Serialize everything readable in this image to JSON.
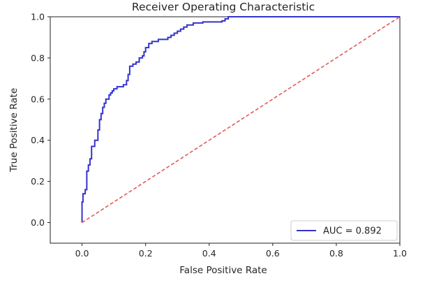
{
  "chart_data": {
    "type": "line",
    "title": "Receiver Operating Characteristic",
    "xlabel": "False Positive Rate",
    "ylabel": "True Positive Rate",
    "xlim": [
      -0.1,
      1.0
    ],
    "ylim": [
      -0.1,
      1.0
    ],
    "xticks": [
      "0.0",
      "0.2",
      "0.4",
      "0.6",
      "0.8",
      "1.0"
    ],
    "yticks": [
      "0.0",
      "0.2",
      "0.4",
      "0.6",
      "0.8",
      "1.0"
    ],
    "grid": false,
    "legend_position": "lower right",
    "series": [
      {
        "name": "AUC = 0.892",
        "color": "#3333cc",
        "style": "solid",
        "x": [
          0.0,
          0.0,
          0.003,
          0.003,
          0.01,
          0.01,
          0.015,
          0.015,
          0.02,
          0.02,
          0.025,
          0.025,
          0.03,
          0.03,
          0.04,
          0.04,
          0.05,
          0.05,
          0.055,
          0.055,
          0.06,
          0.06,
          0.065,
          0.065,
          0.07,
          0.07,
          0.075,
          0.075,
          0.085,
          0.085,
          0.09,
          0.09,
          0.095,
          0.095,
          0.1,
          0.1,
          0.11,
          0.11,
          0.13,
          0.13,
          0.14,
          0.14,
          0.145,
          0.145,
          0.15,
          0.15,
          0.16,
          0.16,
          0.17,
          0.17,
          0.18,
          0.18,
          0.19,
          0.19,
          0.195,
          0.195,
          0.2,
          0.2,
          0.21,
          0.21,
          0.22,
          0.22,
          0.24,
          0.24,
          0.27,
          0.27,
          0.28,
          0.28,
          0.29,
          0.29,
          0.3,
          0.3,
          0.31,
          0.31,
          0.32,
          0.32,
          0.33,
          0.33,
          0.35,
          0.35,
          0.38,
          0.38,
          0.44,
          0.44,
          0.45,
          0.45,
          0.46,
          0.46,
          0.56,
          0.56,
          1.0
        ],
        "y": [
          0.0,
          0.1,
          0.1,
          0.14,
          0.14,
          0.16,
          0.16,
          0.25,
          0.25,
          0.28,
          0.28,
          0.31,
          0.31,
          0.37,
          0.37,
          0.4,
          0.4,
          0.45,
          0.45,
          0.5,
          0.5,
          0.53,
          0.53,
          0.56,
          0.56,
          0.58,
          0.58,
          0.6,
          0.6,
          0.62,
          0.62,
          0.63,
          0.63,
          0.64,
          0.64,
          0.65,
          0.65,
          0.66,
          0.66,
          0.67,
          0.67,
          0.69,
          0.69,
          0.72,
          0.72,
          0.76,
          0.76,
          0.77,
          0.77,
          0.78,
          0.78,
          0.8,
          0.8,
          0.81,
          0.81,
          0.83,
          0.83,
          0.85,
          0.85,
          0.87,
          0.87,
          0.88,
          0.88,
          0.89,
          0.89,
          0.9,
          0.9,
          0.91,
          0.91,
          0.92,
          0.92,
          0.93,
          0.93,
          0.94,
          0.94,
          0.95,
          0.95,
          0.96,
          0.96,
          0.97,
          0.97,
          0.975,
          0.975,
          0.98,
          0.98,
          0.99,
          0.99,
          1.0,
          1.0,
          1.0,
          1.0
        ]
      },
      {
        "name": "",
        "color": "#e05a5a",
        "style": "dashed",
        "x": [
          0.0,
          1.0
        ],
        "y": [
          0.0,
          1.0
        ]
      }
    ]
  }
}
